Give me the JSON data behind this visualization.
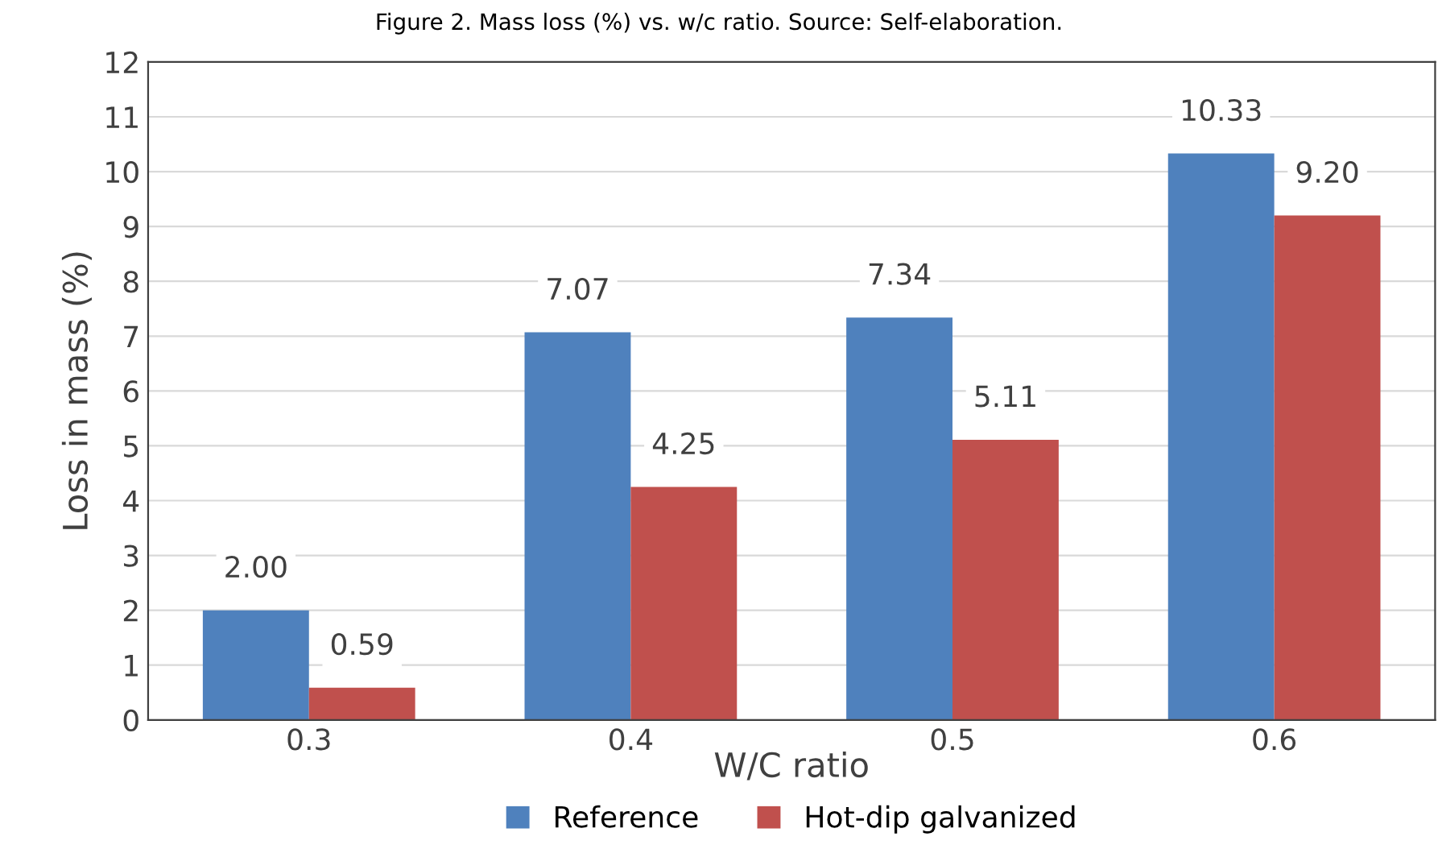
{
  "chart_data": {
    "type": "bar",
    "title": "Figure 2. Mass loss (%) vs. w/c ratio. Source: Self-elaboration.",
    "xlabel": "W/C ratio",
    "ylabel": "Loss in mass (%)",
    "categories": [
      "0.3",
      "0.4",
      "0.5",
      "0.6"
    ],
    "series": [
      {
        "name": "Reference",
        "color": "#4f81bd",
        "values": [
          2.0,
          7.07,
          7.34,
          10.33
        ],
        "value_labels": [
          "2.00",
          "7.07",
          "7.34",
          "10.33"
        ]
      },
      {
        "name": "Hot-dip galvanized",
        "color": "#c0504d",
        "values": [
          0.59,
          4.25,
          5.11,
          9.2
        ],
        "value_labels": [
          "0.59",
          "4.25",
          "5.11",
          "9.20"
        ]
      }
    ],
    "ylim": [
      0,
      12
    ],
    "yticks": [
      0,
      1,
      2,
      3,
      4,
      5,
      6,
      7,
      8,
      9,
      10,
      11,
      12
    ],
    "grid": "y",
    "legend": "bottom"
  }
}
